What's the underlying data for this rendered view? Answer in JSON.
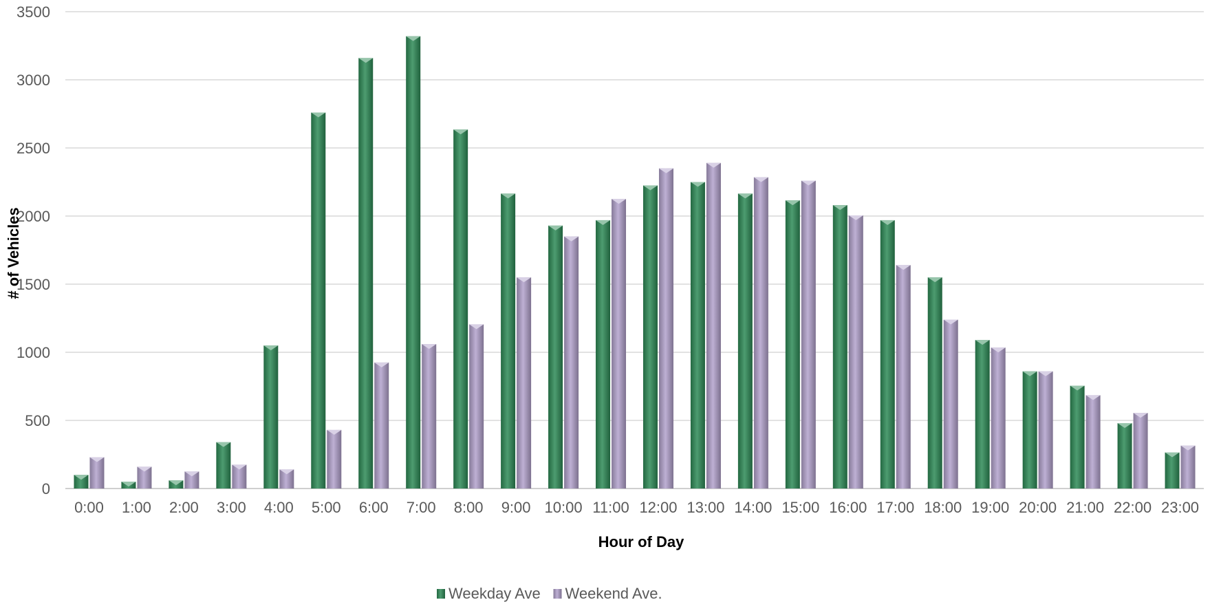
{
  "chart_data": {
    "type": "bar",
    "title": "",
    "xlabel": "Hour of Day",
    "ylabel": "# of Vehicles",
    "ylim": [
      0,
      3500
    ],
    "yticks": [
      0,
      500,
      1000,
      1500,
      2000,
      2500,
      3000,
      3500
    ],
    "ytick_labels": [
      "0",
      "500",
      "1000",
      "1500",
      "2000",
      "2500",
      "3000",
      "3500"
    ],
    "grid": "horizontal",
    "legend_position": "bottom",
    "categories": [
      "0:00",
      "1:00",
      "2:00",
      "3:00",
      "4:00",
      "5:00",
      "6:00",
      "7:00",
      "8:00",
      "9:00",
      "10:00",
      "11:00",
      "12:00",
      "13:00",
      "14:00",
      "15:00",
      "16:00",
      "17:00",
      "18:00",
      "19:00",
      "20:00",
      "21:00",
      "22:00",
      "23:00"
    ],
    "series": [
      {
        "name": "Weekday Ave",
        "color": "#2e8b57",
        "values": [
          100,
          50,
          60,
          340,
          1050,
          2760,
          3160,
          3320,
          2635,
          2165,
          1930,
          1970,
          2225,
          2250,
          2165,
          2115,
          2080,
          1970,
          1550,
          1090,
          860,
          755,
          480,
          265
        ]
      },
      {
        "name": "Weekend Ave.",
        "color": "#b3a2cc",
        "values": [
          230,
          160,
          125,
          175,
          140,
          430,
          925,
          1060,
          1205,
          1550,
          1850,
          2125,
          2350,
          2390,
          2285,
          2260,
          2005,
          1640,
          1240,
          1035,
          860,
          685,
          555,
          315
        ]
      }
    ]
  }
}
